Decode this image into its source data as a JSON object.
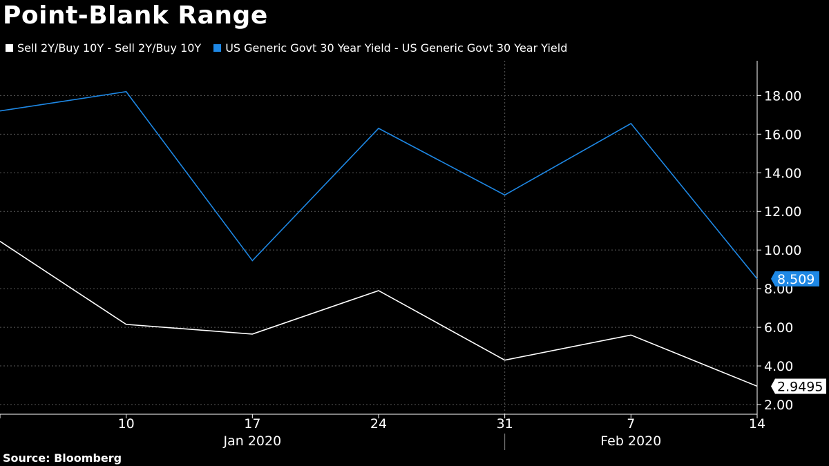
{
  "title": "Point-Blank Range",
  "source": "Source: Bloomberg",
  "colors": {
    "background": "#000000",
    "series1": "#ffffff",
    "series2": "#1e88e5",
    "grid": "#666666"
  },
  "chart_data": {
    "type": "line",
    "title": "Point-Blank Range",
    "xlabel": "",
    "ylabel": "",
    "ylim": [
      1.5,
      19.8
    ],
    "yticks": [
      2.0,
      4.0,
      6.0,
      8.0,
      10.0,
      12.0,
      14.0,
      16.0,
      18.0
    ],
    "ytick_labels": [
      "2.00",
      "4.00",
      "6.00",
      "8.00",
      "10.00",
      "12.00",
      "14.00",
      "16.00",
      "18.00"
    ],
    "x": [
      0,
      1,
      2,
      3,
      4,
      5,
      6
    ],
    "x_dates": [
      "2020-01-03",
      "2020-01-10",
      "2020-01-17",
      "2020-01-24",
      "2020-01-31",
      "2020-02-07",
      "2020-02-14"
    ],
    "xlim": [
      0,
      6
    ],
    "xtick_positions": [
      1,
      2,
      3,
      4,
      5,
      6
    ],
    "xtick_labels": [
      "10",
      "17",
      "24",
      "31",
      "7",
      "14"
    ],
    "month_labels": [
      {
        "label": "Jan 2020",
        "center": 2.0
      },
      {
        "label": "Feb 2020",
        "center": 5.0
      }
    ],
    "month_divider": 4,
    "series": [
      {
        "name": "Sell 2Y/Buy 10Y - Sell 2Y/Buy 10Y",
        "color": "#ffffff",
        "values": [
          10.45,
          6.15,
          5.65,
          7.9,
          4.3,
          5.6,
          2.9495
        ],
        "last_label": "2.9495"
      },
      {
        "name": "US Generic Govt 30 Year Yield - US Generic Govt 30 Year Yield",
        "color": "#1e88e5",
        "values": [
          17.2,
          18.2,
          9.45,
          16.3,
          12.85,
          16.55,
          8.509
        ],
        "last_label": "8.509"
      }
    ]
  }
}
